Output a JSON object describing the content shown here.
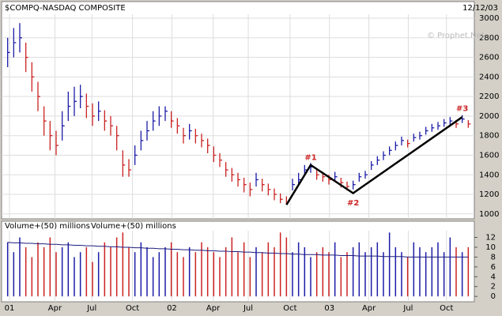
{
  "chart_data": [
    {
      "type": "ohlc",
      "title": "$COMPQ-NASDAQ COMPOSITE",
      "date": "12/12/03",
      "watermark": "© Prophet.Net",
      "xlim": [
        -1,
        77
      ],
      "ylim": [
        950,
        3170
      ],
      "yticks": [
        1000,
        1200,
        1400,
        1600,
        1800,
        2000,
        2200,
        2400,
        2600,
        2800,
        3000
      ],
      "xticks": [
        {
          "value": 0.3,
          "label": "01"
        },
        {
          "value": 7.8,
          "label": "Apr"
        },
        {
          "value": 13.9,
          "label": "Jul"
        },
        {
          "value": 20.6,
          "label": "Oct"
        },
        {
          "value": 27.1,
          "label": "02"
        },
        {
          "value": 33.9,
          "label": "Apr"
        },
        {
          "value": 39.7,
          "label": "Jul"
        },
        {
          "value": 46.6,
          "label": "Oct"
        },
        {
          "value": 53.1,
          "label": "03"
        },
        {
          "value": 59.6,
          "label": "Apr"
        },
        {
          "value": 66.1,
          "label": "Jul"
        },
        {
          "value": 72.4,
          "label": "Oct"
        }
      ],
      "grid": true,
      "up_color": "#1c1ca8",
      "down_color": "#cc2222",
      "high": [
        2800,
        2900,
        2950,
        2750,
        2550,
        2350,
        2100,
        1950,
        1850,
        2050,
        2250,
        2300,
        2320,
        2230,
        2130,
        2150,
        2060,
        2000,
        1900,
        1650,
        1560,
        1700,
        1850,
        1950,
        2050,
        2100,
        2100,
        2050,
        1980,
        1880,
        1920,
        1870,
        1820,
        1770,
        1690,
        1620,
        1530,
        1470,
        1420,
        1370,
        1320,
        1420,
        1360,
        1310,
        1260,
        1210,
        1180,
        1360,
        1420,
        1500,
        1520,
        1460,
        1430,
        1400,
        1430,
        1370,
        1330,
        1340,
        1420,
        1440,
        1540,
        1590,
        1640,
        1690,
        1740,
        1790,
        1760,
        1820,
        1840,
        1890,
        1920,
        1940,
        1970,
        1990,
        1960,
        2010,
        1960
      ],
      "low": [
        2500,
        2600,
        2650,
        2450,
        2250,
        2050,
        1800,
        1650,
        1600,
        1750,
        1950,
        2000,
        2080,
        1980,
        1900,
        1950,
        1850,
        1800,
        1650,
        1380,
        1380,
        1500,
        1650,
        1750,
        1850,
        1900,
        1950,
        1880,
        1820,
        1720,
        1760,
        1720,
        1680,
        1620,
        1530,
        1480,
        1380,
        1330,
        1280,
        1220,
        1180,
        1280,
        1230,
        1190,
        1140,
        1110,
        1100,
        1240,
        1300,
        1390,
        1420,
        1350,
        1330,
        1300,
        1330,
        1270,
        1240,
        1250,
        1330,
        1360,
        1450,
        1500,
        1550,
        1600,
        1650,
        1700,
        1680,
        1740,
        1760,
        1810,
        1840,
        1860,
        1890,
        1910,
        1880,
        1930,
        1880
      ],
      "close": [
        2650,
        2750,
        2800,
        2600,
        2400,
        2200,
        1950,
        1800,
        1700,
        1900,
        2100,
        2150,
        2200,
        2100,
        2000,
        2050,
        1950,
        1900,
        1800,
        1500,
        1450,
        1600,
        1750,
        1850,
        1950,
        2000,
        2050,
        1950,
        1900,
        1800,
        1850,
        1800,
        1750,
        1700,
        1600,
        1550,
        1450,
        1400,
        1350,
        1300,
        1250,
        1350,
        1300,
        1250,
        1200,
        1150,
        1120,
        1300,
        1350,
        1450,
        1480,
        1400,
        1380,
        1350,
        1380,
        1320,
        1280,
        1300,
        1380,
        1400,
        1500,
        1550,
        1600,
        1650,
        1700,
        1750,
        1720,
        1780,
        1800,
        1850,
        1880,
        1900,
        1930,
        1950,
        1920,
        1970,
        1920
      ],
      "trendline": {
        "x": [
          46,
          50,
          57,
          75
        ],
        "y": [
          1093,
          1500,
          1212,
          1990
        ]
      },
      "annotations": [
        {
          "label": "#1",
          "x": 50,
          "y": 1575
        },
        {
          "label": "#2",
          "x": 57,
          "y": 1110
        },
        {
          "label": "#3",
          "x": 75,
          "y": 2075
        }
      ]
    },
    {
      "type": "bar",
      "xlim": [
        -1,
        77
      ],
      "ylim": [
        -1.1,
        15.3
      ],
      "yticks": [
        0,
        2,
        4,
        6,
        8,
        10,
        12
      ],
      "series": [
        {
          "name": "Volume+(50) millions",
          "values": [
            11,
            9,
            12,
            10,
            8,
            11,
            10,
            12,
            9,
            10,
            11,
            8,
            9,
            10,
            7,
            9,
            11,
            10,
            12,
            13,
            10,
            9,
            11,
            10,
            8,
            9,
            10,
            11,
            9,
            8,
            10,
            9,
            11,
            10,
            9,
            8,
            10,
            12,
            9,
            11,
            8,
            10,
            9,
            11,
            10,
            13,
            12,
            9,
            11,
            10,
            8,
            9,
            10,
            9,
            11,
            8,
            9,
            10,
            11,
            9,
            10,
            11,
            9,
            13,
            10,
            9,
            8,
            11,
            10,
            9,
            10,
            11,
            9,
            12,
            10,
            9,
            10
          ]
        },
        {
          "name": "Volume+(50) millions",
          "color": "#1c1c80",
          "values": [
            11.0,
            10.9,
            10.9,
            10.8,
            10.8,
            10.7,
            10.7,
            10.6,
            10.6,
            10.5,
            10.5,
            10.4,
            10.4,
            10.3,
            10.3,
            10.2,
            10.2,
            10.1,
            10.1,
            10.0,
            10.0,
            9.9,
            9.9,
            9.8,
            9.8,
            9.7,
            9.7,
            9.6,
            9.6,
            9.5,
            9.5,
            9.4,
            9.4,
            9.3,
            9.3,
            9.2,
            9.2,
            9.1,
            9.1,
            9.0,
            9.0,
            8.9,
            8.9,
            8.8,
            8.8,
            8.7,
            8.7,
            8.6,
            8.6,
            8.5,
            8.5,
            8.5,
            8.4,
            8.4,
            8.4,
            8.3,
            8.3,
            8.3,
            8.2,
            8.2,
            8.2,
            8.2,
            8.1,
            8.1,
            8.1,
            8.1,
            8.0,
            8.0,
            8.0,
            8.0,
            8.0,
            8.0,
            8.0,
            8.0,
            8.0,
            8.0,
            8.0
          ]
        }
      ]
    }
  ]
}
